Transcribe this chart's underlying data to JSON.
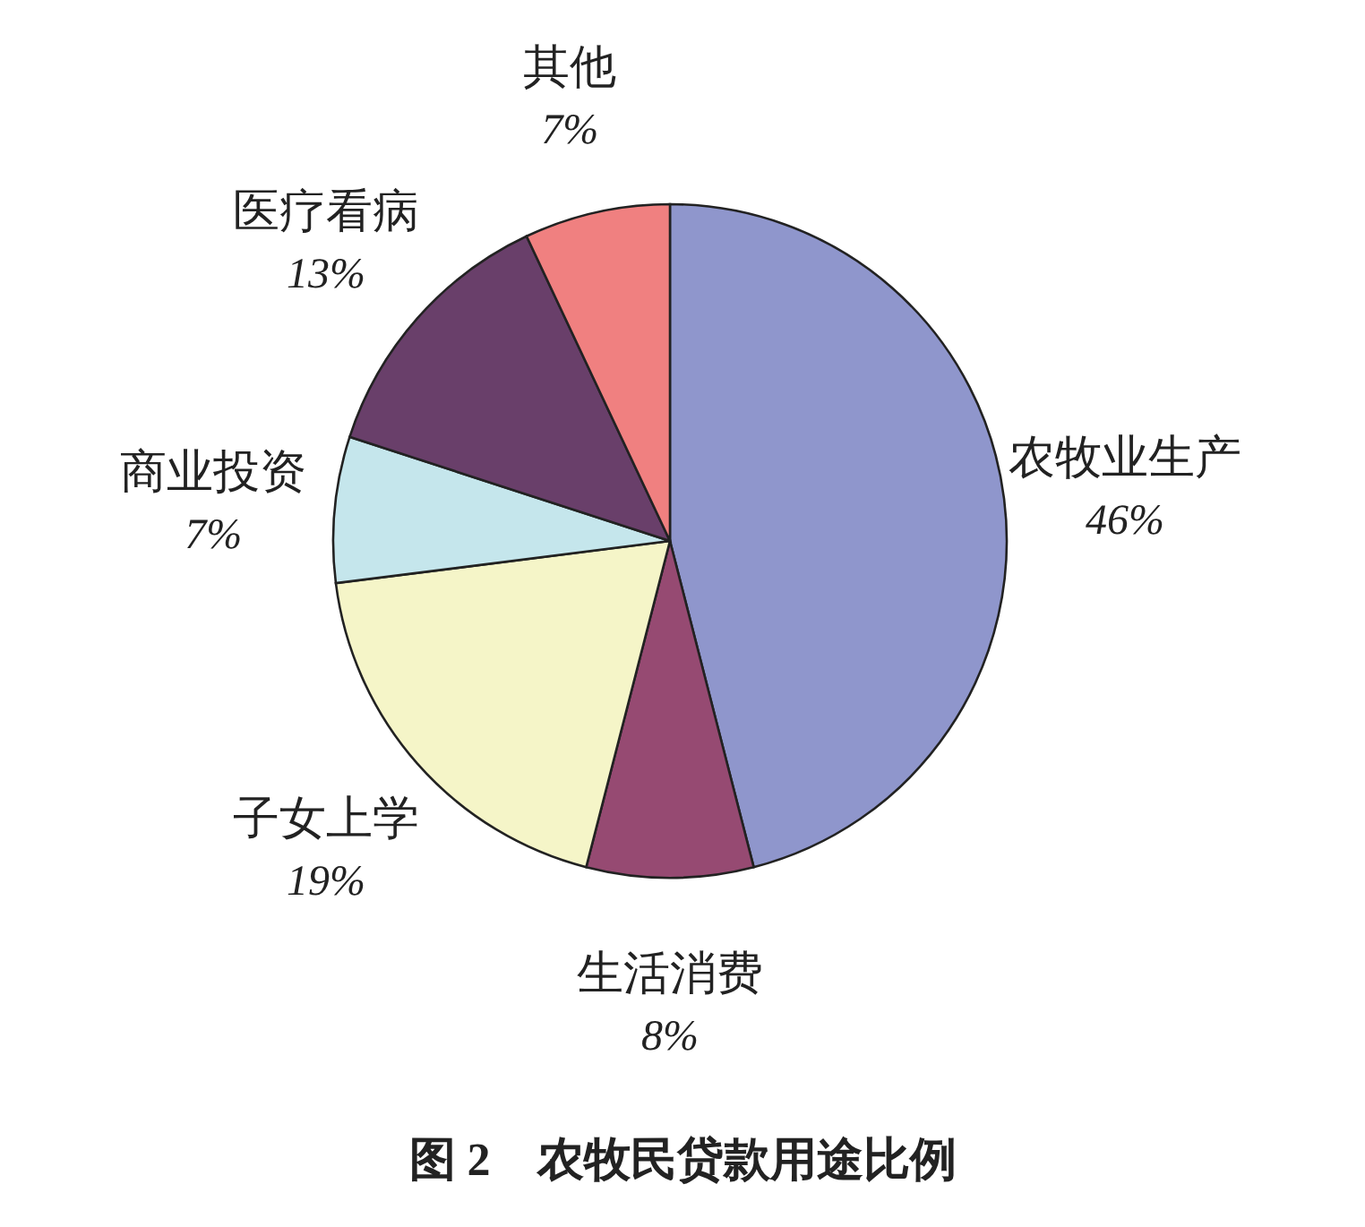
{
  "chart_data": {
    "type": "pie",
    "title": "图 2　农牧民贷款用途比例",
    "categories": [
      "农牧业生产",
      "生活消费",
      "子女上学",
      "商业投资",
      "医疗看病",
      "其他"
    ],
    "values": [
      46,
      8,
      19,
      7,
      13,
      7
    ],
    "value_labels": [
      "46%",
      "8%",
      "19%",
      "7%",
      "13%",
      "7%"
    ],
    "colors": [
      "#8f96cc",
      "#964a72",
      "#f5f5c8",
      "#c5e6ec",
      "#693f6a",
      "#f08080"
    ],
    "legend": false
  }
}
